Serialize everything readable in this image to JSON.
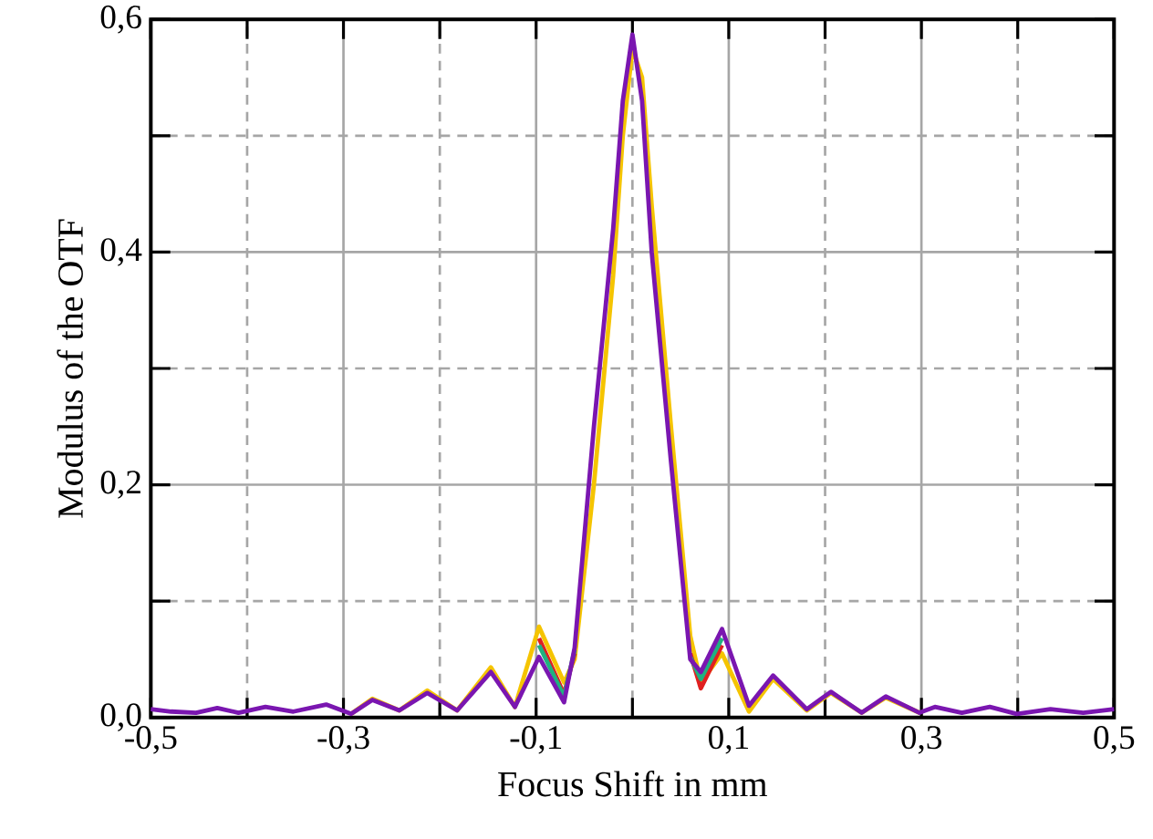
{
  "chart_data": {
    "type": "line",
    "xlabel": "Focus Shift in mm",
    "ylabel": "Modulus of the OTF",
    "x": [
      -0.5,
      -0.479,
      -0.453,
      -0.431,
      -0.409,
      -0.381,
      -0.352,
      -0.318,
      -0.292,
      -0.27,
      -0.242,
      -0.213,
      -0.182,
      -0.147,
      -0.122,
      -0.097,
      -0.071,
      -0.06,
      -0.04,
      -0.02,
      -0.01,
      0,
      0.01,
      0.02,
      0.04,
      0.06,
      0.071,
      0.093,
      0.121,
      0.146,
      0.181,
      0.206,
      0.238,
      0.263,
      0.298,
      0.314,
      0.342,
      0.371,
      0.399,
      0.434,
      0.468,
      0.5
    ],
    "series": [
      {
        "color": "#f5c400",
        "values": [
          null,
          null,
          null,
          null,
          null,
          null,
          null,
          null,
          0.003,
          0.016,
          0.006,
          0.023,
          0.006,
          0.043,
          0.009,
          0.078,
          0.03,
          0.05,
          0.2,
          0.38,
          0.5,
          0.575,
          0.55,
          0.44,
          0.25,
          0.07,
          0.03,
          0.055,
          0.005,
          0.033,
          0.006,
          0.021,
          0.004,
          0.017,
          0.004,
          null,
          null,
          null,
          null,
          null,
          null,
          null
        ]
      },
      {
        "color": "#e02020",
        "values": [
          null,
          null,
          null,
          null,
          null,
          null,
          null,
          null,
          null,
          null,
          null,
          null,
          null,
          null,
          null,
          0.068,
          0.02,
          0.055,
          null,
          null,
          null,
          null,
          null,
          null,
          null,
          0.055,
          0.025,
          0.062,
          null,
          null,
          null,
          null,
          null,
          null,
          null,
          null,
          null,
          null,
          null,
          null,
          null,
          null
        ]
      },
      {
        "color": "#20b080",
        "values": [
          null,
          null,
          null,
          null,
          null,
          null,
          null,
          null,
          null,
          null,
          null,
          null,
          null,
          null,
          null,
          0.062,
          0.018,
          0.058,
          null,
          null,
          null,
          null,
          null,
          null,
          null,
          0.052,
          0.033,
          0.068,
          null,
          null,
          null,
          null,
          null,
          null,
          null,
          null,
          null,
          null,
          null,
          null,
          null,
          null
        ]
      },
      {
        "color": "#7a16b0",
        "values": [
          0.007,
          0.005,
          0.004,
          0.008,
          0.004,
          0.009,
          0.005,
          0.011,
          0.003,
          0.015,
          0.006,
          0.021,
          0.006,
          0.039,
          0.009,
          0.052,
          0.013,
          0.06,
          0.25,
          0.42,
          0.53,
          0.587,
          0.53,
          0.4,
          0.22,
          0.05,
          0.039,
          0.076,
          0.01,
          0.036,
          0.007,
          0.022,
          0.004,
          0.018,
          0.004,
          0.009,
          0.004,
          0.009,
          0.003,
          0.007,
          0.004,
          0.007
        ]
      }
    ],
    "xlim": [
      -0.5,
      0.5
    ],
    "ylim": [
      0,
      0.6
    ],
    "xticks": [
      {
        "value": -0.5,
        "label": "-0,5"
      },
      {
        "value": -0.4,
        "label": null
      },
      {
        "value": -0.3,
        "label": "-0,3"
      },
      {
        "value": -0.2,
        "label": null
      },
      {
        "value": -0.1,
        "label": "-0,1"
      },
      {
        "value": 0,
        "label": null
      },
      {
        "value": 0.1,
        "label": "0,1"
      },
      {
        "value": 0.2,
        "label": null
      },
      {
        "value": 0.3,
        "label": "0,3"
      },
      {
        "value": 0.4,
        "label": null
      },
      {
        "value": 0.5,
        "label": "0,5"
      }
    ],
    "yticks": [
      {
        "value": 0,
        "label": "0,0"
      },
      {
        "value": 0.1,
        "label": null
      },
      {
        "value": 0.2,
        "label": "0,2"
      },
      {
        "value": 0.3,
        "label": null
      },
      {
        "value": 0.4,
        "label": "0,4"
      },
      {
        "value": 0.5,
        "label": null
      },
      {
        "value": 0.6,
        "label": "0,6"
      }
    ],
    "grid": true,
    "marker": "none",
    "line_style": "solid"
  }
}
